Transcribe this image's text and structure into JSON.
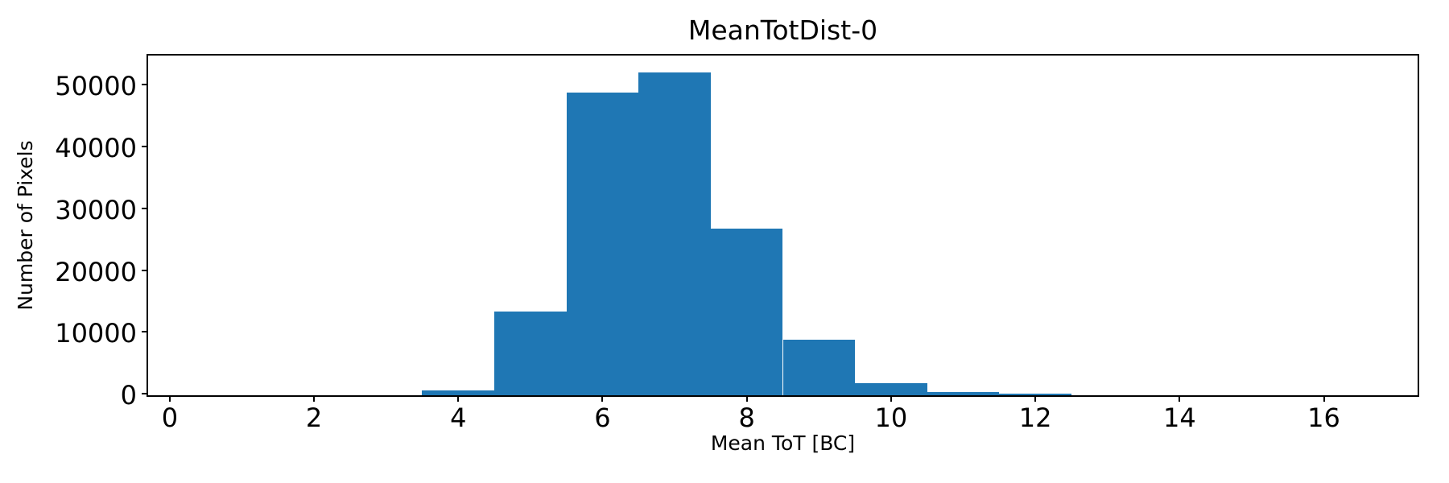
{
  "chart_data": {
    "type": "bar",
    "subtype": "histogram",
    "title": "MeanTotDist-0",
    "xlabel": "Mean ToT [BC]",
    "ylabel": "Number of Pixels",
    "bar_color": "#1f77b4",
    "background_color": "#ffffff",
    "spine_color": "#000000",
    "grid": false,
    "legend_position": "none",
    "xlim": [
      -0.3,
      17.3
    ],
    "ylim": [
      0,
      55000
    ],
    "x_ticks": [
      0,
      2,
      4,
      6,
      8,
      10,
      12,
      14,
      16
    ],
    "y_ticks": [
      0,
      10000,
      20000,
      30000,
      40000,
      50000
    ],
    "bin_width": 1.0,
    "bin_centers": [
      1,
      2,
      3,
      4,
      5,
      6,
      7,
      8,
      9,
      10,
      11,
      12,
      13,
      14,
      15,
      16
    ],
    "counts": [
      0,
      0,
      0,
      800,
      13600,
      49000,
      52300,
      27000,
      8950,
      1950,
      500,
      200,
      0,
      0,
      0,
      0
    ]
  }
}
